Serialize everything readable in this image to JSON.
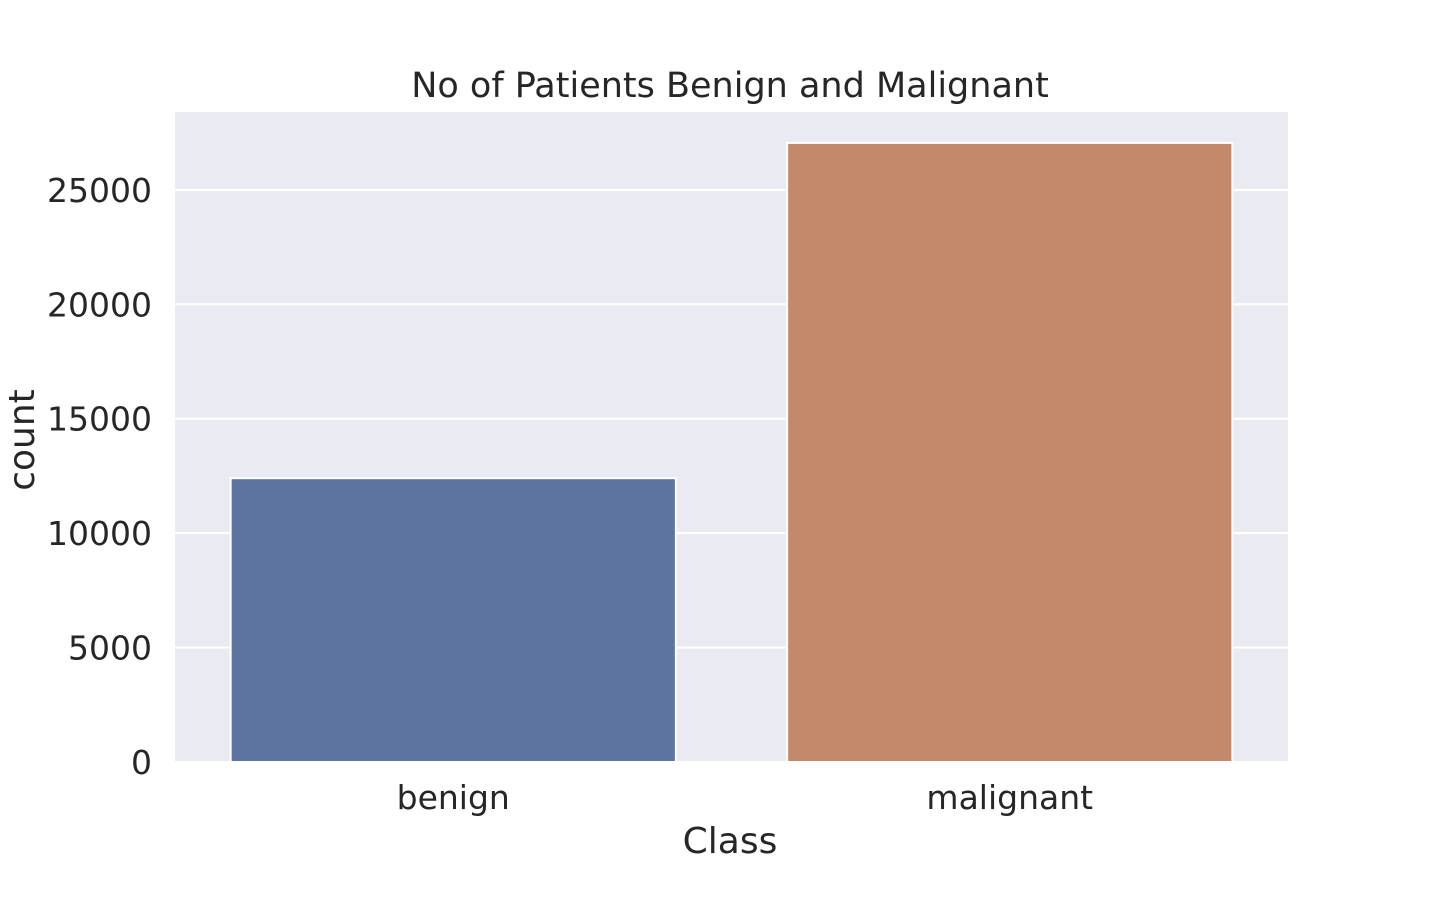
{
  "chart_data": {
    "type": "bar",
    "title": "No of Patients Benign and Malignant",
    "xlabel": "Class",
    "ylabel": "count",
    "categories": [
      "benign",
      "malignant"
    ],
    "values": [
      12400,
      27050
    ],
    "ylim": [
      0,
      28400
    ],
    "yticks": [
      0,
      5000,
      10000,
      15000,
      20000,
      25000
    ],
    "ytick_labels": [
      "0",
      "5000",
      "10000",
      "15000",
      "20000",
      "25000"
    ],
    "grid": true,
    "legend": "none",
    "colors": {
      "bars": [
        "#5d74a0",
        "#c4896a"
      ],
      "plot_background": "#eaeaf2",
      "grid": "#ffffff",
      "text": "#262626"
    }
  }
}
